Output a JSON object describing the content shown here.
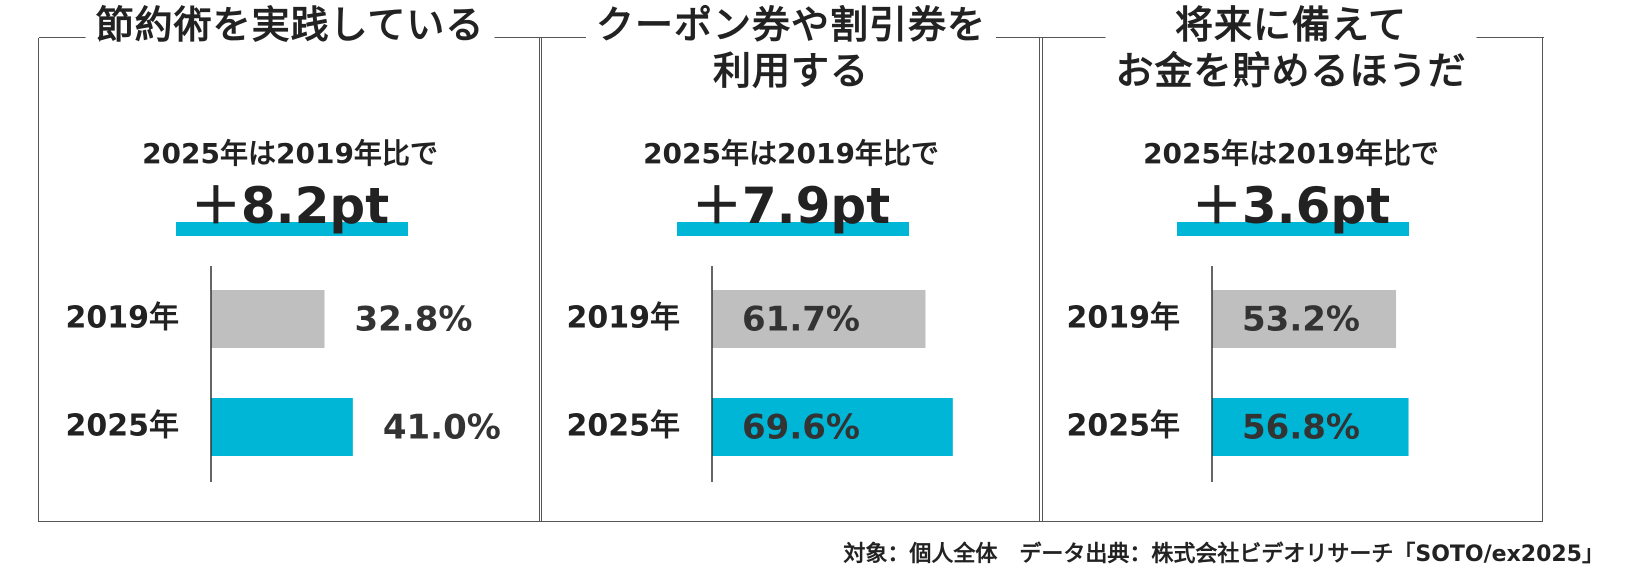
{
  "chart_data": [
    {
      "type": "bar",
      "title": "節約術を実践している",
      "subtitle": "2025年は2019年比で",
      "delta": "＋8.2pt",
      "categories": [
        "2019年",
        "2025年"
      ],
      "values": [
        32.8,
        41.0
      ],
      "value_labels": [
        "32.8%",
        "41.0%"
      ],
      "colors": [
        "#bfbfbf",
        "#00b6d6"
      ],
      "xlim": [
        0,
        100
      ]
    },
    {
      "type": "bar",
      "title": "クーポン券や割引券を\n利用する",
      "subtitle": "2025年は2019年比で",
      "delta": "＋7.9pt",
      "categories": [
        "2019年",
        "2025年"
      ],
      "values": [
        61.7,
        69.6
      ],
      "value_labels": [
        "61.7%",
        "69.6%"
      ],
      "colors": [
        "#bfbfbf",
        "#00b6d6"
      ],
      "xlim": [
        0,
        100
      ]
    },
    {
      "type": "bar",
      "title": "将来に備えて\nお金を貯めるほうだ",
      "subtitle": "2025年は2019年比で",
      "delta": "＋3.6pt",
      "categories": [
        "2019年",
        "2025年"
      ],
      "values": [
        53.2,
        56.8
      ],
      "value_labels": [
        "53.2%",
        "56.8%"
      ],
      "colors": [
        "#bfbfbf",
        "#00b6d6"
      ],
      "xlim": [
        0,
        100
      ]
    }
  ],
  "footer": {
    "source": "対象：個人全体　データ出典：株式会社ビデオリサーチ「SOTO/ex2025」"
  }
}
